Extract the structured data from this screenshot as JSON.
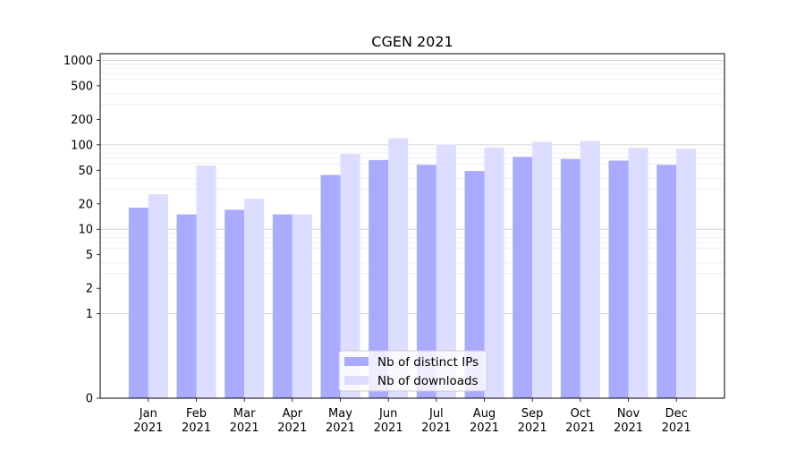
{
  "chart_data": {
    "type": "bar",
    "title": "CGEN 2021",
    "xlabel": "",
    "ylabel": "",
    "y_scale": "symlog",
    "ylim": [
      0,
      1200
    ],
    "y_ticks": [
      0,
      1,
      2,
      5,
      10,
      20,
      50,
      100,
      200,
      500,
      1000
    ],
    "y_tick_labels": [
      "0",
      "1",
      "2",
      "5",
      "10",
      "20",
      "50",
      "100",
      "200",
      "500",
      "1000"
    ],
    "grid": "horizontal",
    "legend_position": "bottom-center",
    "categories": [
      "Jan\n2021",
      "Feb\n2021",
      "Mar\n2021",
      "Apr\n2021",
      "May\n2021",
      "Jun\n2021",
      "Jul\n2021",
      "Aug\n2021",
      "Sep\n2021",
      "Oct\n2021",
      "Nov\n2021",
      "Dec\n2021"
    ],
    "series": [
      {
        "name": "Nb of distinct IPs",
        "color": "#aaaaff",
        "values": [
          18,
          15,
          17,
          15,
          44,
          66,
          58,
          49,
          72,
          68,
          65,
          58
        ]
      },
      {
        "name": "Nb of downloads",
        "color": "#ddddff",
        "values": [
          26,
          57,
          23,
          15,
          78,
          120,
          101,
          93,
          109,
          111,
          92,
          89
        ]
      }
    ]
  }
}
